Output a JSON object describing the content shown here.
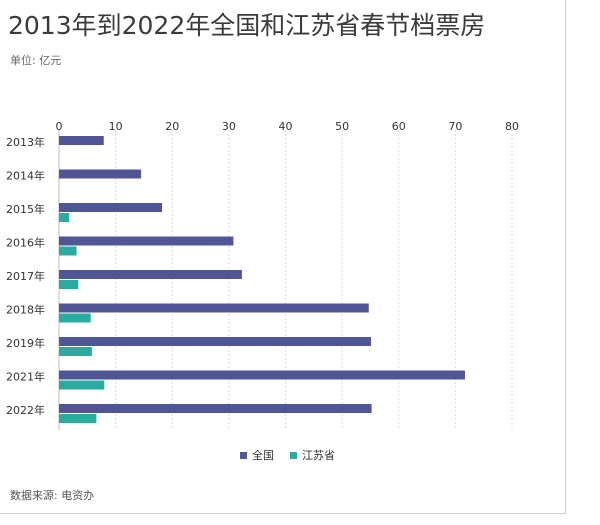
{
  "header": {
    "title": "2013年到2022年全国和江苏省春节档票房",
    "unit": "单位: 亿元"
  },
  "footer": {
    "source": "数据来源: 电资办"
  },
  "colors": {
    "national": "#4f5595",
    "jiangsu": "#2aaba0",
    "grid": "#dcdcdc"
  },
  "chart_data": {
    "type": "bar",
    "orientation": "horizontal",
    "categories": [
      "2013年",
      "2014年",
      "2015年",
      "2016年",
      "2017年",
      "2018年",
      "2019年",
      "2021年",
      "2022年"
    ],
    "series": [
      {
        "name": "全国",
        "values": [
          7.9,
          14.5,
          18.2,
          30.8,
          32.3,
          54.7,
          55.1,
          71.7,
          55.2
        ]
      },
      {
        "name": "江苏省",
        "values": [
          null,
          null,
          1.8,
          3.1,
          3.4,
          5.6,
          5.8,
          8.0,
          6.6
        ]
      }
    ],
    "xlim": [
      0,
      80
    ],
    "xticks": [
      0,
      10,
      20,
      30,
      40,
      50,
      60,
      70,
      80
    ],
    "grid": true,
    "legend": "bottom-center"
  }
}
